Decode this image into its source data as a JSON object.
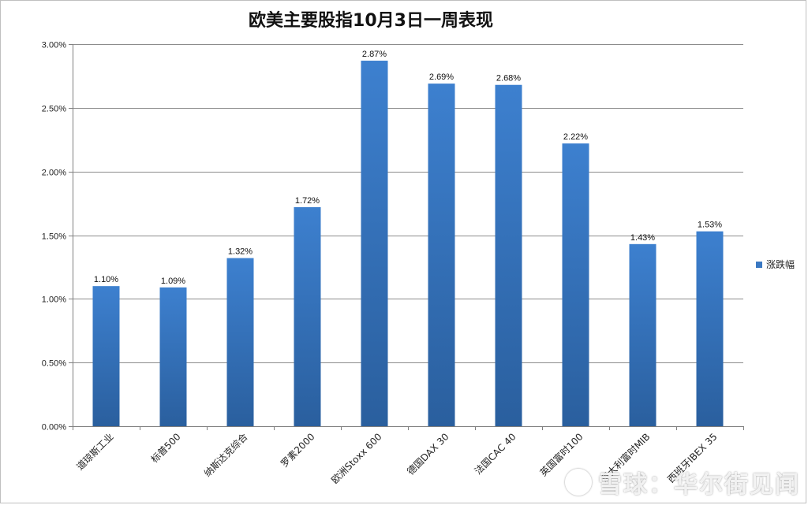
{
  "chart_data": {
    "type": "bar",
    "title": "欧美主要股指10月3日一周表现",
    "categories": [
      "道琼斯工业",
      "标普500",
      "纳斯达克综合",
      "罗素2000",
      "欧洲Stoxx 600",
      "德国DAX 30",
      "法国CAC 40",
      "英国富时100",
      "意大利富时MIB",
      "西班牙IBEX 35"
    ],
    "series": [
      {
        "name": "涨跌幅",
        "values": [
          1.1,
          1.09,
          1.32,
          1.72,
          2.87,
          2.69,
          2.68,
          2.22,
          1.43,
          1.53
        ],
        "labels": [
          "1.10%",
          "1.09%",
          "1.32%",
          "1.72%",
          "2.87%",
          "2.69%",
          "2.68%",
          "2.22%",
          "1.43%",
          "1.53%"
        ]
      }
    ],
    "yticks": [
      "0.00%",
      "0.50%",
      "1.00%",
      "1.50%",
      "2.00%",
      "2.50%",
      "3.00%"
    ],
    "ylim": [
      0,
      3.0
    ],
    "grid": true,
    "legend_position": "right",
    "bar_color_top": "#3d80cf",
    "bar_color_bottom": "#2a5f9e"
  },
  "watermark": "雪球：华尔街见闻"
}
